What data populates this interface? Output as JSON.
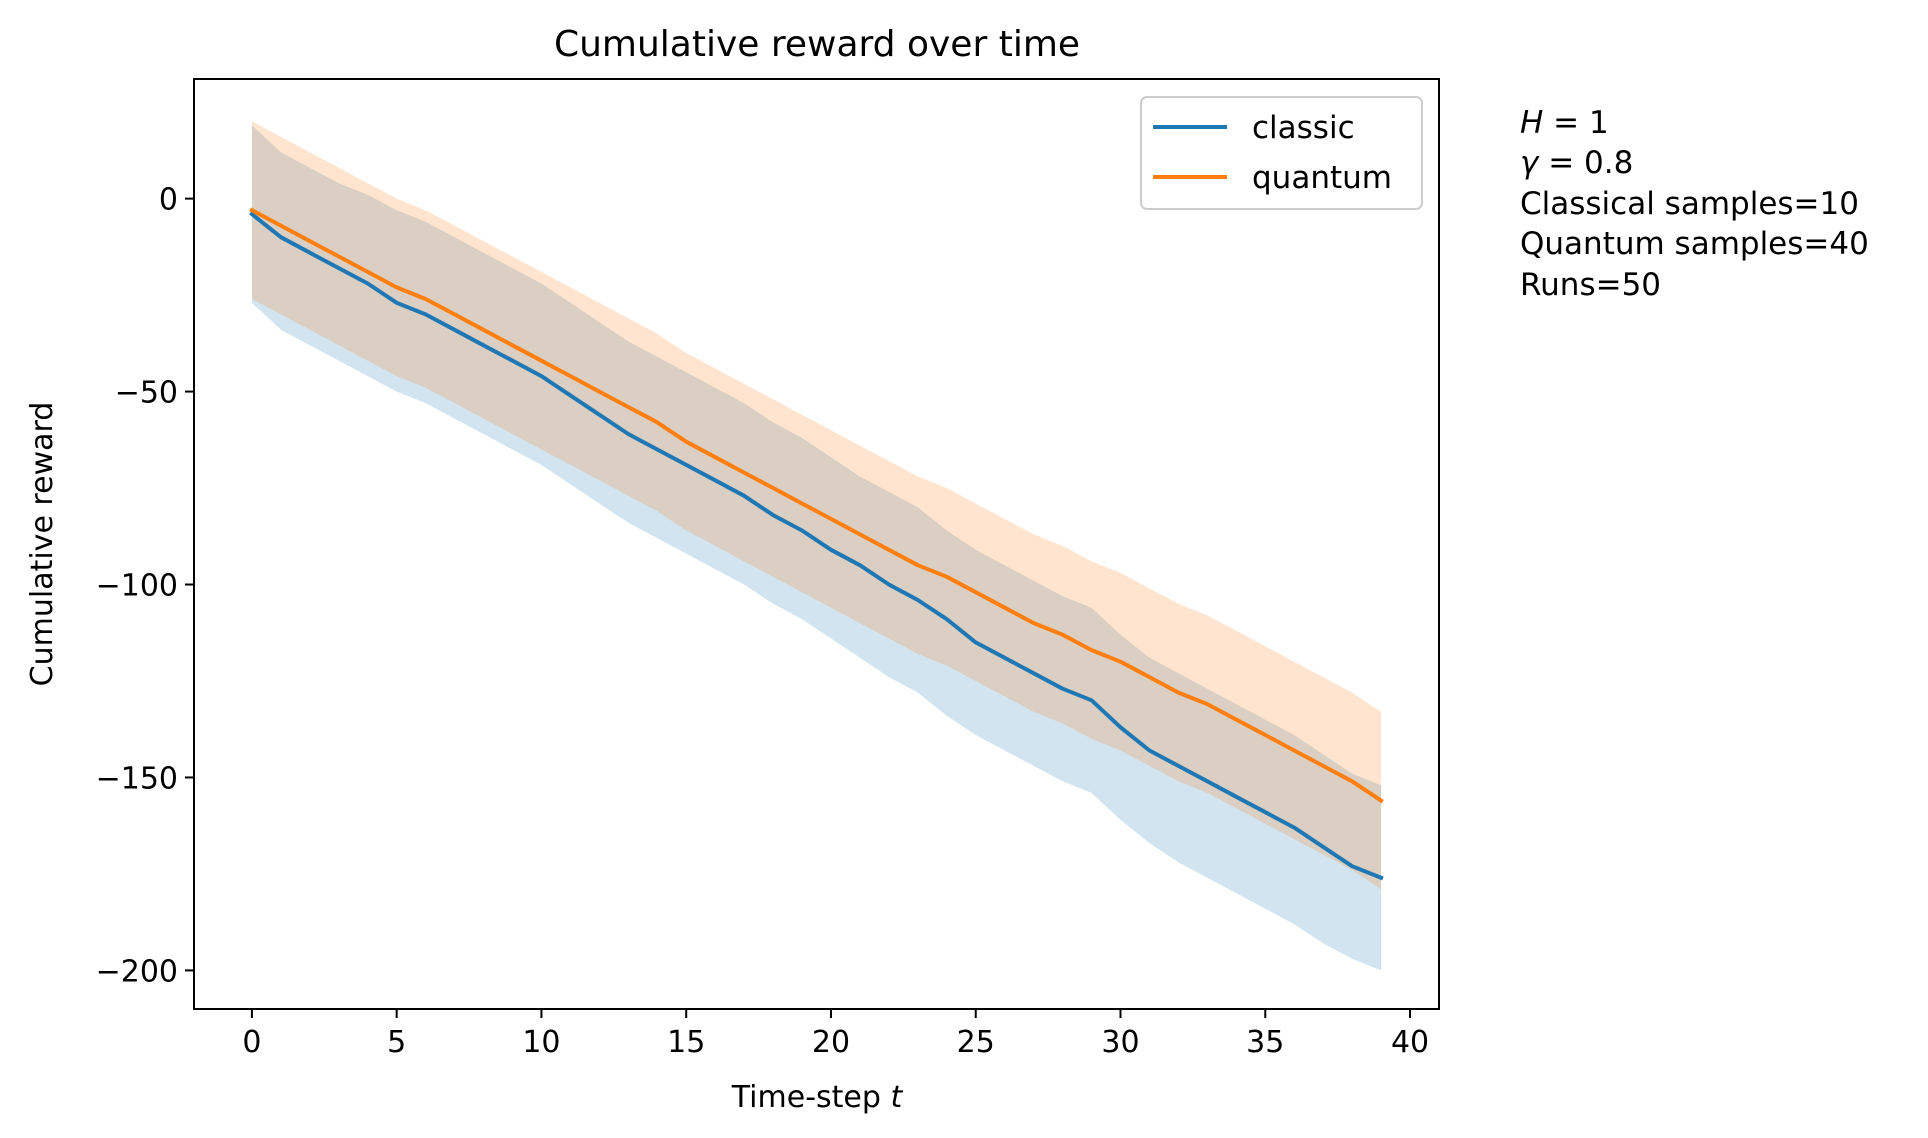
{
  "chart_data": {
    "type": "line",
    "title": "Cumulative reward over time",
    "xlabel_text": "Time-step ",
    "xlabel_var": "t",
    "ylabel": "Cumulative reward",
    "xlim": [
      -2,
      41
    ],
    "ylim": [
      -210,
      31
    ],
    "xticks": [
      0,
      5,
      10,
      15,
      20,
      25,
      30,
      35,
      40
    ],
    "yticks": [
      0,
      -50,
      -100,
      -150,
      -200
    ],
    "ytick_labels": [
      "0",
      "−50",
      "−100",
      "−150",
      "−200"
    ],
    "grid": false,
    "legend_position": "top-right",
    "x": [
      0,
      1,
      2,
      3,
      4,
      5,
      6,
      7,
      8,
      9,
      10,
      11,
      12,
      13,
      14,
      15,
      16,
      17,
      18,
      19,
      20,
      21,
      22,
      23,
      24,
      25,
      26,
      27,
      28,
      29,
      30,
      31,
      32,
      33,
      34,
      35,
      36,
      37,
      38,
      39
    ],
    "series": [
      {
        "name": "classic",
        "color": "#1f77b4",
        "values": [
          -4,
          -10,
          -14,
          -18,
          -22,
          -27,
          -30,
          -34,
          -38,
          -42,
          -46,
          -51,
          -56,
          -61,
          -65,
          -69,
          -73,
          -77,
          -82,
          -86,
          -91,
          -95,
          -100,
          -104,
          -109,
          -115,
          -119,
          -123,
          -127,
          -130,
          -137,
          -143,
          -147,
          -151,
          -155,
          -159,
          -163,
          -168,
          -173,
          -176
        ],
        "lower": [
          -27,
          -34,
          -38,
          -42,
          -46,
          -50,
          -53,
          -57,
          -61,
          -65,
          -69,
          -74,
          -79,
          -84,
          -88,
          -92,
          -96,
          -100,
          -105,
          -109,
          -114,
          -119,
          -124,
          -128,
          -134,
          -139,
          -143,
          -147,
          -151,
          -154,
          -161,
          -167,
          -172,
          -176,
          -180,
          -184,
          -188,
          -193,
          -197,
          -200
        ],
        "upper": [
          19,
          12,
          8,
          4,
          1,
          -3,
          -6,
          -10,
          -14,
          -18,
          -22,
          -27,
          -32,
          -37,
          -41,
          -45,
          -49,
          -53,
          -58,
          -62,
          -67,
          -72,
          -76,
          -80,
          -86,
          -91,
          -95,
          -99,
          -103,
          -106,
          -113,
          -119,
          -123,
          -127,
          -131,
          -135,
          -139,
          -144,
          -149,
          -152
        ],
        "band_color": "#1f77b4",
        "band_opacity": 0.2
      },
      {
        "name": "quantum",
        "color": "#ff7f0e",
        "values": [
          -3,
          -7,
          -11,
          -15,
          -19,
          -23,
          -26,
          -30,
          -34,
          -38,
          -42,
          -46,
          -50,
          -54,
          -58,
          -63,
          -67,
          -71,
          -75,
          -79,
          -83,
          -87,
          -91,
          -95,
          -98,
          -102,
          -106,
          -110,
          -113,
          -117,
          -120,
          -124,
          -128,
          -131,
          -135,
          -139,
          -143,
          -147,
          -151,
          -156
        ],
        "lower": [
          -26,
          -30,
          -34,
          -38,
          -42,
          -46,
          -49,
          -53,
          -57,
          -61,
          -65,
          -69,
          -73,
          -77,
          -81,
          -86,
          -90,
          -94,
          -98,
          -102,
          -106,
          -110,
          -114,
          -118,
          -121,
          -125,
          -129,
          -133,
          -136,
          -140,
          -143,
          -147,
          -151,
          -154,
          -158,
          -162,
          -166,
          -170,
          -174,
          -179
        ],
        "upper": [
          20,
          16,
          12,
          8,
          4,
          0,
          -3,
          -7,
          -11,
          -15,
          -19,
          -23,
          -27,
          -31,
          -35,
          -40,
          -44,
          -48,
          -52,
          -56,
          -60,
          -64,
          -68,
          -72,
          -75,
          -79,
          -83,
          -87,
          -90,
          -94,
          -97,
          -101,
          -105,
          -108,
          -112,
          -116,
          -120,
          -124,
          -128,
          -133
        ],
        "band_color": "#ff7f0e",
        "band_opacity": 0.2
      }
    ],
    "annotation": {
      "H_var": "H",
      "H_value": " = 1",
      "gamma_var": "γ",
      "gamma_value": " = 0.8",
      "classical_samples": "Classical samples=10",
      "quantum_samples": "Quantum samples=40",
      "runs": "Runs=50"
    }
  }
}
